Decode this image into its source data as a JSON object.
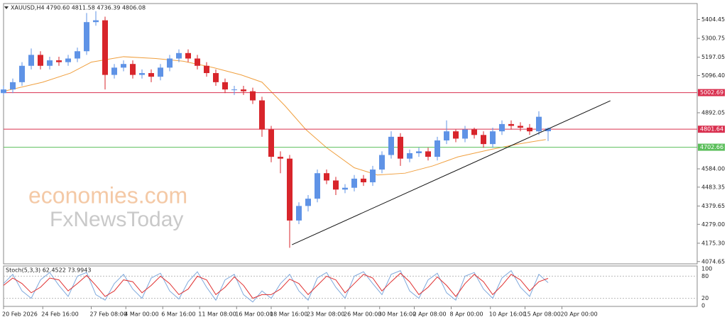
{
  "chart_data": {
    "type": "candlestick",
    "title": "XAUUSD,H4  4790.60 4811.58 4736.39 4806.08",
    "watermark": [
      "economies.com",
      "FxNewsToday"
    ],
    "xlim": [
      0,
      300
    ],
    "xticks": [
      {
        "value": 0,
        "label": "20 Feb 2026"
      },
      {
        "value": 17,
        "label": "24 Feb 16:00"
      },
      {
        "value": 38,
        "label": "27 Feb 08:00"
      },
      {
        "value": 53,
        "label": "4 Mar 00:00"
      },
      {
        "value": 69,
        "label": "6 Mar 16:00"
      },
      {
        "value": 85,
        "label": "11 Mar 08:00"
      },
      {
        "value": 101,
        "label": "16 Mar 00:00"
      },
      {
        "value": 116,
        "label": "18 Mar 16:00"
      },
      {
        "value": 132,
        "label": "23 Mar 08:00"
      },
      {
        "value": 148,
        "label": "26 Mar 00:00"
      },
      {
        "value": 163,
        "label": "30 Mar 16:00"
      },
      {
        "value": 178,
        "label": "2 Apr 08:00"
      },
      {
        "value": 194,
        "label": "8 Apr 00:00"
      },
      {
        "value": 211,
        "label": "10 Apr 16:00"
      },
      {
        "value": 226,
        "label": "15 Apr 08:00"
      },
      {
        "value": 242,
        "label": "20 Apr 00:00"
      }
    ],
    "ylim": [
      4062,
      5492
    ],
    "yticks": [
      5404.45,
      5300.75,
      5197.05,
      {
        "value": 5096.4,
        "label": "5096.40"
      },
      4892.05,
      {
        "value": 4584,
        "label": "4584.00"
      },
      4483.35,
      4379.65,
      {
        "value": 4279,
        "label": "4279.00"
      },
      {
        "value": 4175.3,
        "label": "4175.30"
      },
      4074.65
    ],
    "up_color": "#5f93e6",
    "down_color": "#d8252b",
    "x": [
      0,
      4,
      8,
      12,
      16,
      20,
      24,
      28,
      32,
      36,
      40,
      44,
      48,
      52,
      56,
      60,
      64,
      68,
      72,
      76,
      80,
      84,
      88,
      92,
      96,
      100,
      104,
      108,
      112,
      116,
      120,
      124,
      128,
      132,
      136,
      140,
      144,
      148,
      152,
      156,
      160,
      164,
      168,
      172,
      176,
      180,
      184,
      188,
      192,
      196,
      200,
      204,
      208,
      212,
      216,
      220,
      224,
      228,
      232,
      236
    ],
    "open": [
      5000,
      5020,
      5060,
      5150,
      5210,
      5150,
      5180,
      5170,
      5190,
      5230,
      5390,
      5400,
      5100,
      5140,
      5160,
      5100,
      5110,
      5090,
      5140,
      5190,
      5220,
      5190,
      5150,
      5110,
      5060,
      5020,
      5020,
      5010,
      4960,
      4800,
      4650,
      4640,
      4300,
      4380,
      4420,
      4560,
      4520,
      4470,
      4480,
      4530,
      4510,
      4580,
      4660,
      4760,
      4640,
      4670,
      4680,
      4650,
      4740,
      4790,
      4750,
      4800,
      4770,
      4720,
      4790,
      4830,
      4820,
      4810,
      4790,
      4790.6
    ],
    "high": [
      5040,
      5080,
      5170,
      5245,
      5230,
      5200,
      5200,
      5210,
      5250,
      5440,
      5450,
      5420,
      5160,
      5180,
      5180,
      5130,
      5130,
      5160,
      5210,
      5240,
      5240,
      5210,
      5170,
      5130,
      5080,
      5040,
      5040,
      5030,
      4980,
      4820,
      4680,
      4660,
      4400,
      4440,
      4580,
      4580,
      4540,
      4500,
      4550,
      4550,
      4600,
      4680,
      4790,
      4780,
      4690,
      4700,
      4700,
      4760,
      4850,
      4800,
      4820,
      4810,
      4790,
      4810,
      4850,
      4850,
      4840,
      4830,
      4900,
      4811.58
    ],
    "low": [
      4990,
      5000,
      5040,
      5130,
      5130,
      5130,
      5150,
      5150,
      5170,
      5210,
      5370,
      5020,
      5080,
      5120,
      5080,
      5080,
      5060,
      5070,
      5120,
      5170,
      5170,
      5130,
      5090,
      5040,
      5000,
      4990,
      4990,
      4940,
      4760,
      4620,
      4560,
      4150,
      4280,
      4350,
      4400,
      4500,
      4440,
      4450,
      4460,
      4490,
      4490,
      4560,
      4640,
      4600,
      4620,
      4650,
      4630,
      4630,
      4720,
      4730,
      4730,
      4750,
      4700,
      4700,
      4770,
      4800,
      4790,
      4770,
      4770,
      4736.39
    ],
    "close": [
      5020,
      5060,
      5150,
      5210,
      5150,
      5180,
      5170,
      5190,
      5230,
      5390,
      5400,
      5100,
      5140,
      5160,
      5100,
      5110,
      5090,
      5140,
      5190,
      5220,
      5190,
      5150,
      5110,
      5060,
      5020,
      5020,
      5010,
      4960,
      4800,
      4650,
      4640,
      4300,
      4380,
      4420,
      4560,
      4520,
      4470,
      4480,
      4530,
      4510,
      4580,
      4660,
      4760,
      4640,
      4670,
      4680,
      4650,
      4740,
      4790,
      4750,
      4800,
      4770,
      4720,
      4790,
      4830,
      4820,
      4810,
      4790,
      4870,
      4806.08
    ],
    "moving_average": {
      "color": "#f0a040",
      "x": [
        0,
        17,
        29,
        38,
        52,
        66,
        78,
        91,
        103,
        112,
        122,
        131,
        140,
        152,
        162,
        174,
        186,
        197,
        211,
        223,
        235
      ],
      "values": [
        5010,
        5060,
        5110,
        5170,
        5200,
        5190,
        5175,
        5140,
        5100,
        5060,
        4930,
        4800,
        4700,
        4590,
        4550,
        4560,
        4600,
        4650,
        4690,
        4720,
        4745
      ]
    },
    "levels": [
      {
        "value": 5002.69,
        "color": "#d9304f"
      },
      {
        "value": 4801.64,
        "color": "#d9304f"
      },
      {
        "value": 4702.66,
        "color": "#5cbf5c"
      }
    ],
    "trendline": {
      "x": [
        125,
        263
      ],
      "y": [
        4167,
        4958
      ],
      "color": "#111111"
    },
    "oscillator": {
      "label": "Stoch(5,3,3) 62.4522 73.9943",
      "ylim": [
        0,
        100
      ],
      "yticks": [
        100,
        80,
        20,
        0
      ],
      "levels": [
        80,
        20
      ],
      "series": [
        {
          "color": "#7fa9dc",
          "values": [
            60,
            85,
            40,
            20,
            70,
            90,
            55,
            25,
            80,
            90,
            30,
            15,
            60,
            85,
            45,
            20,
            75,
            88,
            40,
            18,
            65,
            92,
            50,
            15,
            70,
            85,
            30,
            10,
            40,
            20,
            60,
            85,
            40,
            15,
            75,
            90,
            50,
            20,
            80,
            92,
            60,
            30,
            85,
            95,
            40,
            20,
            70,
            88,
            35,
            15,
            80,
            90,
            45,
            20,
            75,
            95,
            50,
            25,
            85,
            62.4522
          ]
        },
        {
          "color": "#e03030",
          "values": [
            55,
            75,
            60,
            35,
            50,
            75,
            70,
            40,
            60,
            82,
            55,
            25,
            40,
            70,
            65,
            35,
            55,
            80,
            60,
            30,
            45,
            80,
            70,
            30,
            50,
            78,
            55,
            20,
            30,
            30,
            45,
            72,
            60,
            30,
            55,
            80,
            70,
            35,
            60,
            85,
            75,
            40,
            65,
            88,
            65,
            30,
            50,
            78,
            55,
            25,
            60,
            85,
            65,
            30,
            55,
            85,
            70,
            40,
            65,
            73.9943
          ]
        }
      ]
    }
  }
}
